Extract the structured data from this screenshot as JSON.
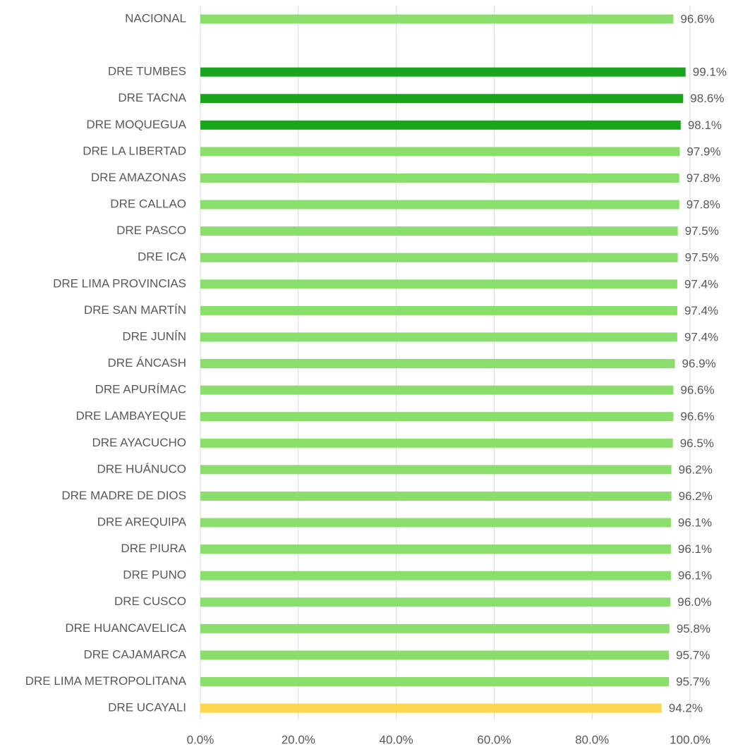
{
  "chart_data": {
    "type": "bar",
    "orientation": "horizontal",
    "categories": [
      "NACIONAL",
      null,
      "DRE TUMBES",
      "DRE TACNA",
      "DRE MOQUEGUA",
      "DRE LA LIBERTAD",
      "DRE AMAZONAS",
      "DRE CALLAO",
      "DRE PASCO",
      "DRE ICA",
      "DRE LIMA PROVINCIAS",
      "DRE SAN MARTÍN",
      "DRE JUNÍN",
      "DRE ÁNCASH",
      "DRE APURÍMAC",
      "DRE LAMBAYEQUE",
      "DRE AYACUCHO",
      "DRE HUÁNUCO",
      "DRE MADRE DE DIOS",
      "DRE AREQUIPA",
      "DRE PIURA",
      "DRE PUNO",
      "DRE CUSCO",
      "DRE HUANCAVELICA",
      "DRE CAJAMARCA",
      "DRE LIMA METROPOLITANA",
      "DRE UCAYALI"
    ],
    "values": [
      96.6,
      null,
      99.1,
      98.6,
      98.1,
      97.9,
      97.8,
      97.8,
      97.5,
      97.5,
      97.4,
      97.4,
      97.4,
      96.9,
      96.6,
      96.6,
      96.5,
      96.2,
      96.2,
      96.1,
      96.1,
      96.1,
      96.0,
      95.8,
      95.7,
      95.7,
      94.2
    ],
    "value_labels": [
      "96.6%",
      null,
      "99.1%",
      "98.6%",
      "98.1%",
      "97.9%",
      "97.8%",
      "97.8%",
      "97.5%",
      "97.5%",
      "97.4%",
      "97.4%",
      "97.4%",
      "96.9%",
      "96.6%",
      "96.6%",
      "96.5%",
      "96.2%",
      "96.2%",
      "96.1%",
      "96.1%",
      "96.1%",
      "96.0%",
      "95.8%",
      "95.7%",
      "95.7%",
      "94.2%"
    ],
    "colors": [
      "#8ade6b",
      null,
      "#1aa61a",
      "#1aa61a",
      "#1aa61a",
      "#8ade6b",
      "#8ade6b",
      "#8ade6b",
      "#8ade6b",
      "#8ade6b",
      "#8ade6b",
      "#8ade6b",
      "#8ade6b",
      "#8ade6b",
      "#8ade6b",
      "#8ade6b",
      "#8ade6b",
      "#8ade6b",
      "#8ade6b",
      "#8ade6b",
      "#8ade6b",
      "#8ade6b",
      "#8ade6b",
      "#8ade6b",
      "#8ade6b",
      "#8ade6b",
      "#ffd54f"
    ],
    "xlim": [
      0,
      100
    ],
    "xticks": [
      {
        "value": 0,
        "label": "0.0%"
      },
      {
        "value": 20,
        "label": "20.0%"
      },
      {
        "value": 40,
        "label": "40.0%"
      },
      {
        "value": 60,
        "label": "60.0%"
      },
      {
        "value": 80,
        "label": "80.0%"
      },
      {
        "value": 100,
        "label": "100.0%"
      }
    ],
    "grid": true
  }
}
